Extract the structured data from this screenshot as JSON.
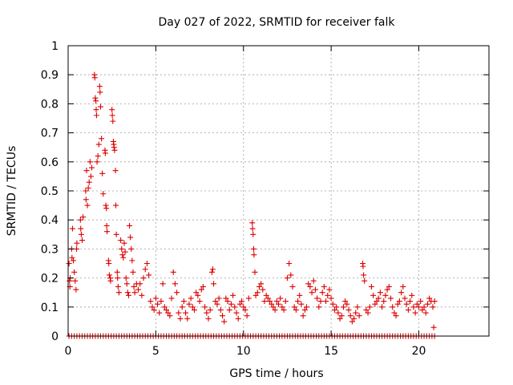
{
  "chart_data": {
    "type": "scatter",
    "title": "Day 027 of 2022, SRMTID for receiver falk",
    "xlabel": "GPS time / hours",
    "ylabel": "SRMTID / TECUs",
    "xlim": [
      0,
      24
    ],
    "ylim": [
      0,
      1
    ],
    "xticks": [
      0,
      5,
      10,
      15,
      20
    ],
    "xtick_labels": [
      "0",
      "5",
      "10",
      "15",
      "20"
    ],
    "yticks": [
      0,
      0.1,
      0.2,
      0.3,
      0.4,
      0.5,
      0.6,
      0.7,
      0.8,
      0.9,
      1
    ],
    "ytick_labels": [
      "0",
      "0.1",
      "0.2",
      "0.3",
      "0.4",
      "0.5",
      "0.6",
      "0.7",
      "0.8",
      "0.9",
      "1"
    ],
    "grid": true,
    "marker": "+",
    "color": "#dd0000",
    "zero_baseline": {
      "x_start": 0.05,
      "x_end": 20.9,
      "step": 0.15,
      "y": 0
    },
    "series": [
      {
        "name": "SRMTID",
        "points": [
          [
            0.05,
            0.25
          ],
          [
            0.08,
            0.19
          ],
          [
            0.1,
            0.17
          ],
          [
            0.12,
            0.2
          ],
          [
            0.2,
            0.3
          ],
          [
            0.22,
            0.27
          ],
          [
            0.25,
            0.37
          ],
          [
            0.3,
            0.26
          ],
          [
            0.35,
            0.22
          ],
          [
            0.4,
            0.19
          ],
          [
            0.45,
            0.16
          ],
          [
            0.48,
            0.3
          ],
          [
            0.5,
            0.32
          ],
          [
            0.7,
            0.4
          ],
          [
            0.72,
            0.37
          ],
          [
            0.75,
            0.35
          ],
          [
            0.8,
            0.33
          ],
          [
            0.85,
            0.41
          ],
          [
            1.0,
            0.5
          ],
          [
            1.02,
            0.47
          ],
          [
            1.05,
            0.57
          ],
          [
            1.1,
            0.45
          ],
          [
            1.15,
            0.51
          ],
          [
            1.2,
            0.53
          ],
          [
            1.25,
            0.6
          ],
          [
            1.3,
            0.55
          ],
          [
            1.35,
            0.58
          ],
          [
            1.5,
            0.9
          ],
          [
            1.52,
            0.89
          ],
          [
            1.55,
            0.82
          ],
          [
            1.58,
            0.81
          ],
          [
            1.6,
            0.78
          ],
          [
            1.62,
            0.76
          ],
          [
            1.65,
            0.6
          ],
          [
            1.7,
            0.62
          ],
          [
            1.75,
            0.66
          ],
          [
            1.8,
            0.86
          ],
          [
            1.82,
            0.84
          ],
          [
            1.85,
            0.79
          ],
          [
            1.9,
            0.68
          ],
          [
            1.95,
            0.56
          ],
          [
            2.0,
            0.49
          ],
          [
            2.1,
            0.64
          ],
          [
            2.12,
            0.63
          ],
          [
            2.15,
            0.45
          ],
          [
            2.18,
            0.44
          ],
          [
            2.2,
            0.38
          ],
          [
            2.22,
            0.36
          ],
          [
            2.3,
            0.26
          ],
          [
            2.32,
            0.25
          ],
          [
            2.35,
            0.21
          ],
          [
            2.4,
            0.2
          ],
          [
            2.42,
            0.19
          ],
          [
            2.5,
            0.78
          ],
          [
            2.52,
            0.76
          ],
          [
            2.55,
            0.74
          ],
          [
            2.58,
            0.67
          ],
          [
            2.6,
            0.66
          ],
          [
            2.62,
            0.65
          ],
          [
            2.65,
            0.64
          ],
          [
            2.7,
            0.57
          ],
          [
            2.72,
            0.45
          ],
          [
            2.75,
            0.35
          ],
          [
            2.8,
            0.22
          ],
          [
            2.82,
            0.2
          ],
          [
            2.85,
            0.17
          ],
          [
            2.9,
            0.15
          ],
          [
            3.0,
            0.33
          ],
          [
            3.05,
            0.3
          ],
          [
            3.1,
            0.28
          ],
          [
            3.15,
            0.27
          ],
          [
            3.2,
            0.32
          ],
          [
            3.25,
            0.29
          ],
          [
            3.3,
            0.2
          ],
          [
            3.35,
            0.18
          ],
          [
            3.4,
            0.15
          ],
          [
            3.45,
            0.14
          ],
          [
            3.5,
            0.38
          ],
          [
            3.55,
            0.34
          ],
          [
            3.6,
            0.3
          ],
          [
            3.65,
            0.26
          ],
          [
            3.7,
            0.22
          ],
          [
            3.75,
            0.17
          ],
          [
            3.8,
            0.15
          ],
          [
            3.9,
            0.18
          ],
          [
            4.0,
            0.16
          ],
          [
            4.1,
            0.18
          ],
          [
            4.2,
            0.14
          ],
          [
            4.3,
            0.2
          ],
          [
            4.4,
            0.23
          ],
          [
            4.5,
            0.25
          ],
          [
            4.6,
            0.21
          ],
          [
            4.7,
            0.12
          ],
          [
            4.8,
            0.1
          ],
          [
            4.9,
            0.09
          ],
          [
            5.0,
            0.13
          ],
          [
            5.1,
            0.11
          ],
          [
            5.2,
            0.08
          ],
          [
            5.3,
            0.12
          ],
          [
            5.4,
            0.18
          ],
          [
            5.5,
            0.1
          ],
          [
            5.6,
            0.09
          ],
          [
            5.7,
            0.08
          ],
          [
            5.8,
            0.07
          ],
          [
            5.9,
            0.13
          ],
          [
            6.0,
            0.22
          ],
          [
            6.1,
            0.18
          ],
          [
            6.2,
            0.15
          ],
          [
            6.3,
            0.08
          ],
          [
            6.4,
            0.06
          ],
          [
            6.5,
            0.1
          ],
          [
            6.6,
            0.12
          ],
          [
            6.7,
            0.08
          ],
          [
            6.8,
            0.06
          ],
          [
            6.9,
            0.11
          ],
          [
            7.0,
            0.13
          ],
          [
            7.1,
            0.1
          ],
          [
            7.2,
            0.09
          ],
          [
            7.3,
            0.15
          ],
          [
            7.4,
            0.14
          ],
          [
            7.5,
            0.12
          ],
          [
            7.6,
            0.16
          ],
          [
            7.7,
            0.17
          ],
          [
            7.8,
            0.1
          ],
          [
            7.9,
            0.08
          ],
          [
            8.0,
            0.06
          ],
          [
            8.1,
            0.09
          ],
          [
            8.2,
            0.22
          ],
          [
            8.25,
            0.23
          ],
          [
            8.3,
            0.18
          ],
          [
            8.4,
            0.12
          ],
          [
            8.5,
            0.11
          ],
          [
            8.6,
            0.13
          ],
          [
            8.7,
            0.09
          ],
          [
            8.8,
            0.07
          ],
          [
            8.9,
            0.05
          ],
          [
            9.0,
            0.13
          ],
          [
            9.1,
            0.12
          ],
          [
            9.2,
            0.09
          ],
          [
            9.3,
            0.11
          ],
          [
            9.4,
            0.14
          ],
          [
            9.5,
            0.1
          ],
          [
            9.6,
            0.08
          ],
          [
            9.7,
            0.06
          ],
          [
            9.8,
            0.11
          ],
          [
            9.9,
            0.12
          ],
          [
            10.0,
            0.1
          ],
          [
            10.1,
            0.09
          ],
          [
            10.2,
            0.07
          ],
          [
            10.3,
            0.13
          ],
          [
            10.5,
            0.39
          ],
          [
            10.52,
            0.37
          ],
          [
            10.55,
            0.35
          ],
          [
            10.58,
            0.3
          ],
          [
            10.6,
            0.28
          ],
          [
            10.65,
            0.22
          ],
          [
            10.7,
            0.14
          ],
          [
            10.8,
            0.15
          ],
          [
            10.9,
            0.17
          ],
          [
            11.0,
            0.18
          ],
          [
            11.1,
            0.16
          ],
          [
            11.2,
            0.12
          ],
          [
            11.3,
            0.14
          ],
          [
            11.4,
            0.13
          ],
          [
            11.5,
            0.12
          ],
          [
            11.6,
            0.11
          ],
          [
            11.7,
            0.1
          ],
          [
            11.8,
            0.09
          ],
          [
            11.9,
            0.12
          ],
          [
            12.0,
            0.11
          ],
          [
            12.1,
            0.13
          ],
          [
            12.2,
            0.1
          ],
          [
            12.3,
            0.09
          ],
          [
            12.4,
            0.12
          ],
          [
            12.5,
            0.2
          ],
          [
            12.6,
            0.25
          ],
          [
            12.7,
            0.21
          ],
          [
            12.8,
            0.17
          ],
          [
            12.9,
            0.1
          ],
          [
            13.0,
            0.09
          ],
          [
            13.1,
            0.12
          ],
          [
            13.2,
            0.14
          ],
          [
            13.3,
            0.11
          ],
          [
            13.4,
            0.07
          ],
          [
            13.5,
            0.09
          ],
          [
            13.6,
            0.1
          ],
          [
            13.7,
            0.18
          ],
          [
            13.8,
            0.17
          ],
          [
            13.9,
            0.15
          ],
          [
            14.0,
            0.19
          ],
          [
            14.1,
            0.16
          ],
          [
            14.2,
            0.13
          ],
          [
            14.3,
            0.1
          ],
          [
            14.4,
            0.12
          ],
          [
            14.5,
            0.15
          ],
          [
            14.6,
            0.17
          ],
          [
            14.7,
            0.12
          ],
          [
            14.8,
            0.14
          ],
          [
            14.9,
            0.16
          ],
          [
            15.0,
            0.13
          ],
          [
            15.1,
            0.11
          ],
          [
            15.2,
            0.09
          ],
          [
            15.3,
            0.1
          ],
          [
            15.4,
            0.08
          ],
          [
            15.5,
            0.06
          ],
          [
            15.6,
            0.07
          ],
          [
            15.7,
            0.1
          ],
          [
            15.8,
            0.12
          ],
          [
            15.9,
            0.11
          ],
          [
            16.0,
            0.09
          ],
          [
            16.1,
            0.07
          ],
          [
            16.2,
            0.05
          ],
          [
            16.3,
            0.06
          ],
          [
            16.4,
            0.08
          ],
          [
            16.5,
            0.1
          ],
          [
            16.6,
            0.07
          ],
          [
            16.8,
            0.25
          ],
          [
            16.82,
            0.24
          ],
          [
            16.85,
            0.21
          ],
          [
            16.9,
            0.19
          ],
          [
            17.0,
            0.09
          ],
          [
            17.1,
            0.08
          ],
          [
            17.2,
            0.1
          ],
          [
            17.3,
            0.17
          ],
          [
            17.4,
            0.14
          ],
          [
            17.5,
            0.11
          ],
          [
            17.6,
            0.12
          ],
          [
            17.7,
            0.13
          ],
          [
            17.8,
            0.15
          ],
          [
            17.9,
            0.1
          ],
          [
            18.0,
            0.12
          ],
          [
            18.1,
            0.14
          ],
          [
            18.2,
            0.16
          ],
          [
            18.3,
            0.17
          ],
          [
            18.4,
            0.13
          ],
          [
            18.5,
            0.1
          ],
          [
            18.6,
            0.08
          ],
          [
            18.7,
            0.07
          ],
          [
            18.8,
            0.11
          ],
          [
            18.9,
            0.12
          ],
          [
            19.0,
            0.15
          ],
          [
            19.1,
            0.17
          ],
          [
            19.2,
            0.13
          ],
          [
            19.3,
            0.11
          ],
          [
            19.4,
            0.09
          ],
          [
            19.5,
            0.12
          ],
          [
            19.6,
            0.14
          ],
          [
            19.7,
            0.1
          ],
          [
            19.8,
            0.08
          ],
          [
            19.9,
            0.11
          ],
          [
            20.0,
            0.1
          ],
          [
            20.1,
            0.12
          ],
          [
            20.2,
            0.09
          ],
          [
            20.3,
            0.1
          ],
          [
            20.4,
            0.08
          ],
          [
            20.5,
            0.11
          ],
          [
            20.6,
            0.13
          ],
          [
            20.7,
            0.12
          ],
          [
            20.8,
            0.1
          ],
          [
            20.85,
            0.03
          ],
          [
            20.9,
            0.12
          ]
        ]
      }
    ]
  }
}
